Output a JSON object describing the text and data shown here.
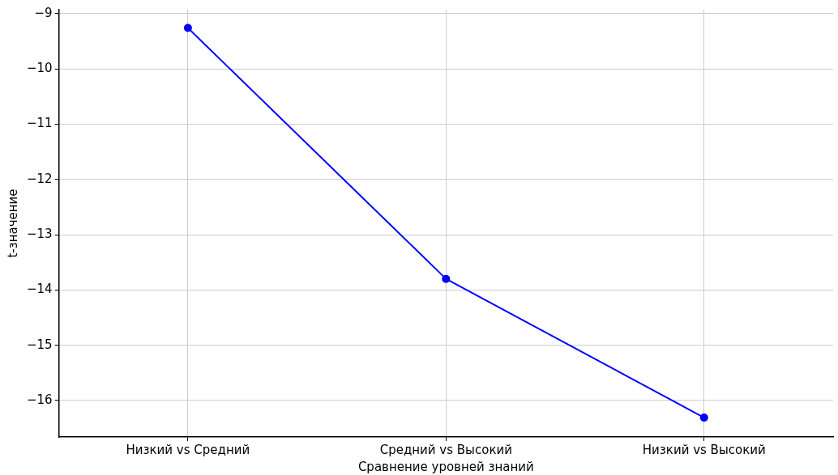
{
  "chart_data": {
    "type": "line",
    "xlabel": "Сравнение уровней знаний",
    "ylabel": "t-значение",
    "categories": [
      "Низкий vs Средний",
      "Средний vs Высокий",
      "Низкий vs Высокий"
    ],
    "series": [
      {
        "color": "#0000ff",
        "values": [
          -9.26,
          -13.8,
          -16.31
        ]
      }
    ],
    "ylim": [
      -16.66,
      -8.93
    ],
    "yticks": [
      {
        "value": -16,
        "label": "−16"
      },
      {
        "value": -15,
        "label": "−15"
      },
      {
        "value": -14,
        "label": "−14"
      },
      {
        "value": -13,
        "label": "−13"
      },
      {
        "value": -12,
        "label": "−12"
      },
      {
        "value": -11,
        "label": "−11"
      },
      {
        "value": -10,
        "label": "−10"
      },
      {
        "value": -9,
        "label": "−9"
      }
    ],
    "grid": true,
    "legend": false,
    "marker": "circle",
    "line_style": "solid"
  }
}
